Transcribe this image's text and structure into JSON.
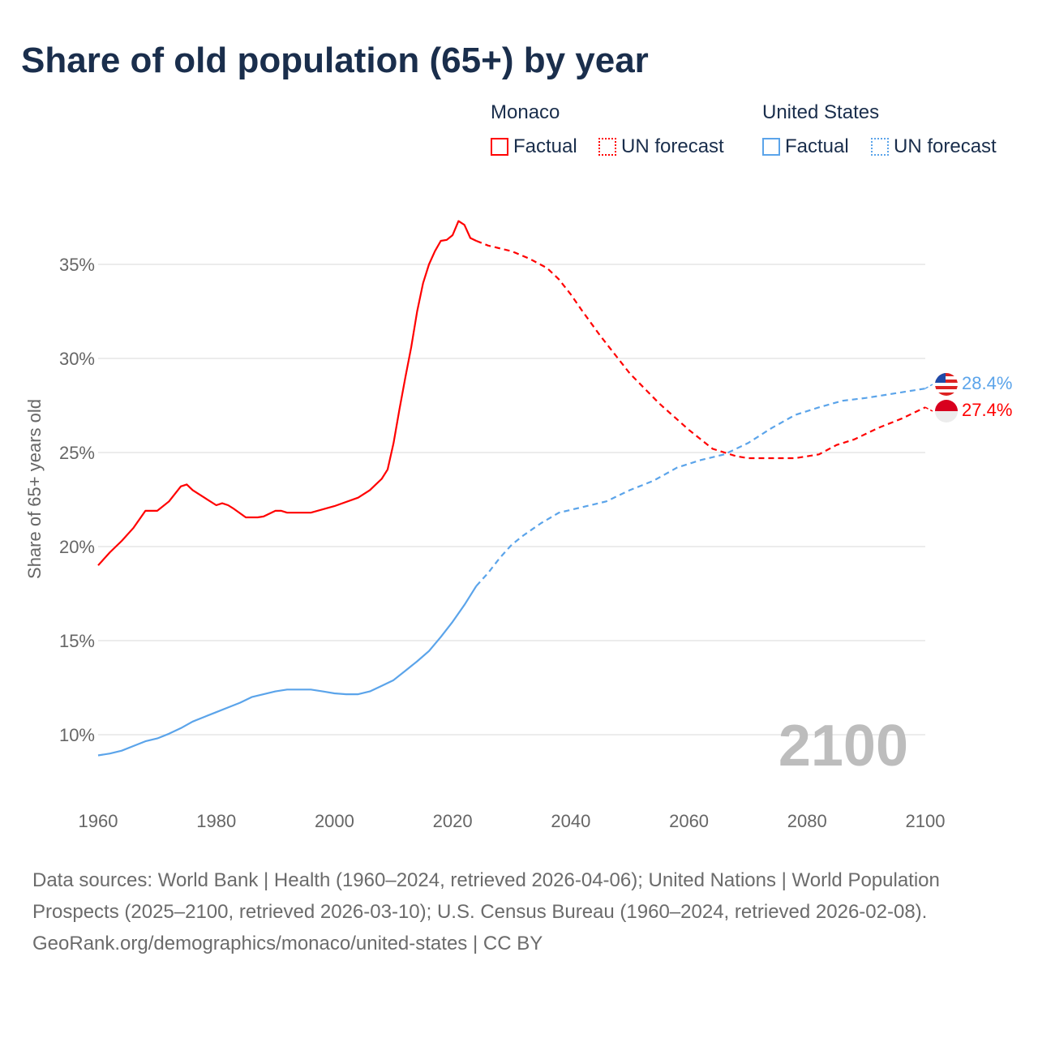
{
  "title": "Share of old population (65+) by year",
  "legend": {
    "groups": [
      {
        "country": "Monaco",
        "color": "#ff0000",
        "factual": "Factual",
        "forecast": "UN forecast"
      },
      {
        "country": "United States",
        "color": "#5ba4ea",
        "factual": "Factual",
        "forecast": "UN forecast"
      }
    ]
  },
  "year_watermark": "2100",
  "end_labels": {
    "monaco": "27.4%",
    "us": "28.4%"
  },
  "footer": {
    "sources": "Data sources: World Bank | Health (1960–2024, retrieved 2026-04-06); United Nations | World Population Prospects (2025–2100, retrieved 2026-03-10); U.S. Census Bureau (1960–2024, retrieved 2026-02-08).",
    "credit": "GeoRank.org/demographics/monaco/united-states | CC BY"
  },
  "chart_data": {
    "type": "line",
    "title": "Share of old population (65+) by year",
    "xlabel": "",
    "ylabel": "Share of 65+ years old",
    "xlim": [
      1960,
      2100
    ],
    "ylim": [
      8,
      38
    ],
    "xticks": [
      1960,
      1980,
      2000,
      2020,
      2040,
      2060,
      2080,
      2100
    ],
    "xtick_labels": [
      "1960",
      "1980",
      "2000",
      "2020",
      "2040",
      "2060",
      "2080",
      "2100"
    ],
    "yticks": [
      10,
      15,
      20,
      25,
      30,
      35
    ],
    "ytick_labels": [
      "10%",
      "15%",
      "20%",
      "25%",
      "30%",
      "35%"
    ],
    "grid": true,
    "legend_position": "top-right",
    "series": [
      {
        "name": "Monaco Factual",
        "color": "#ff0000",
        "dashed": false,
        "x": [
          1960,
          1962,
          1964,
          1966,
          1968,
          1970,
          1972,
          1974,
          1975,
          1976,
          1978,
          1980,
          1981,
          1982,
          1983,
          1985,
          1987,
          1988,
          1990,
          1991,
          1992,
          1996,
          2000,
          2004,
          2006,
          2007,
          2008,
          2009,
          2010,
          2011,
          2012,
          2013,
          2014,
          2015,
          2016,
          2017,
          2018,
          2019,
          2020,
          2021,
          2022,
          2023,
          2024
        ],
        "y": [
          19.0,
          19.7,
          20.3,
          21.0,
          21.9,
          21.9,
          22.4,
          23.2,
          23.3,
          23.0,
          22.6,
          22.2,
          22.3,
          22.2,
          22.0,
          21.55,
          21.55,
          21.6,
          21.9,
          21.9,
          21.8,
          21.8,
          22.15,
          22.6,
          23.0,
          23.3,
          23.6,
          24.1,
          25.5,
          27.3,
          29.0,
          30.6,
          32.5,
          34.0,
          35.0,
          35.7,
          36.25,
          36.3,
          36.55,
          37.3,
          37.1,
          36.4,
          36.25
        ]
      },
      {
        "name": "Monaco UN forecast",
        "color": "#ff0000",
        "dashed": true,
        "x": [
          2024,
          2026,
          2030,
          2033,
          2036,
          2038,
          2040,
          2042,
          2045,
          2050,
          2055,
          2060,
          2064,
          2068,
          2070,
          2078,
          2082,
          2085,
          2088,
          2092,
          2096,
          2100
        ],
        "y": [
          36.25,
          36.0,
          35.7,
          35.3,
          34.8,
          34.2,
          33.4,
          32.5,
          31.2,
          29.2,
          27.6,
          26.2,
          25.2,
          24.8,
          24.7,
          24.7,
          24.9,
          25.4,
          25.7,
          26.3,
          26.8,
          27.4
        ]
      },
      {
        "name": "United States Factual",
        "color": "#5ba4ea",
        "dashed": false,
        "x": [
          1960,
          1962,
          1964,
          1966,
          1968,
          1970,
          1972,
          1974,
          1976,
          1978,
          1980,
          1982,
          1984,
          1986,
          1988,
          1990,
          1992,
          1996,
          1998,
          2000,
          2002,
          2004,
          2006,
          2008,
          2010,
          2012,
          2014,
          2016,
          2018,
          2020,
          2022,
          2024
        ],
        "y": [
          8.9,
          9.0,
          9.15,
          9.4,
          9.65,
          9.8,
          10.05,
          10.35,
          10.7,
          10.95,
          11.2,
          11.45,
          11.7,
          12.0,
          12.15,
          12.3,
          12.4,
          12.4,
          12.3,
          12.2,
          12.15,
          12.15,
          12.3,
          12.6,
          12.9,
          13.4,
          13.9,
          14.45,
          15.2,
          16.0,
          16.9,
          17.9
        ]
      },
      {
        "name": "United States UN forecast",
        "color": "#5ba4ea",
        "dashed": true,
        "x": [
          2024,
          2026,
          2028,
          2030,
          2032,
          2035,
          2038,
          2042,
          2046,
          2050,
          2054,
          2058,
          2062,
          2066,
          2070,
          2074,
          2078,
          2082,
          2086,
          2090,
          2094,
          2098,
          2100
        ],
        "y": [
          17.9,
          18.6,
          19.4,
          20.1,
          20.6,
          21.25,
          21.8,
          22.1,
          22.4,
          23.0,
          23.5,
          24.2,
          24.6,
          24.9,
          25.5,
          26.3,
          27.0,
          27.4,
          27.75,
          27.9,
          28.1,
          28.3,
          28.4
        ]
      }
    ]
  }
}
